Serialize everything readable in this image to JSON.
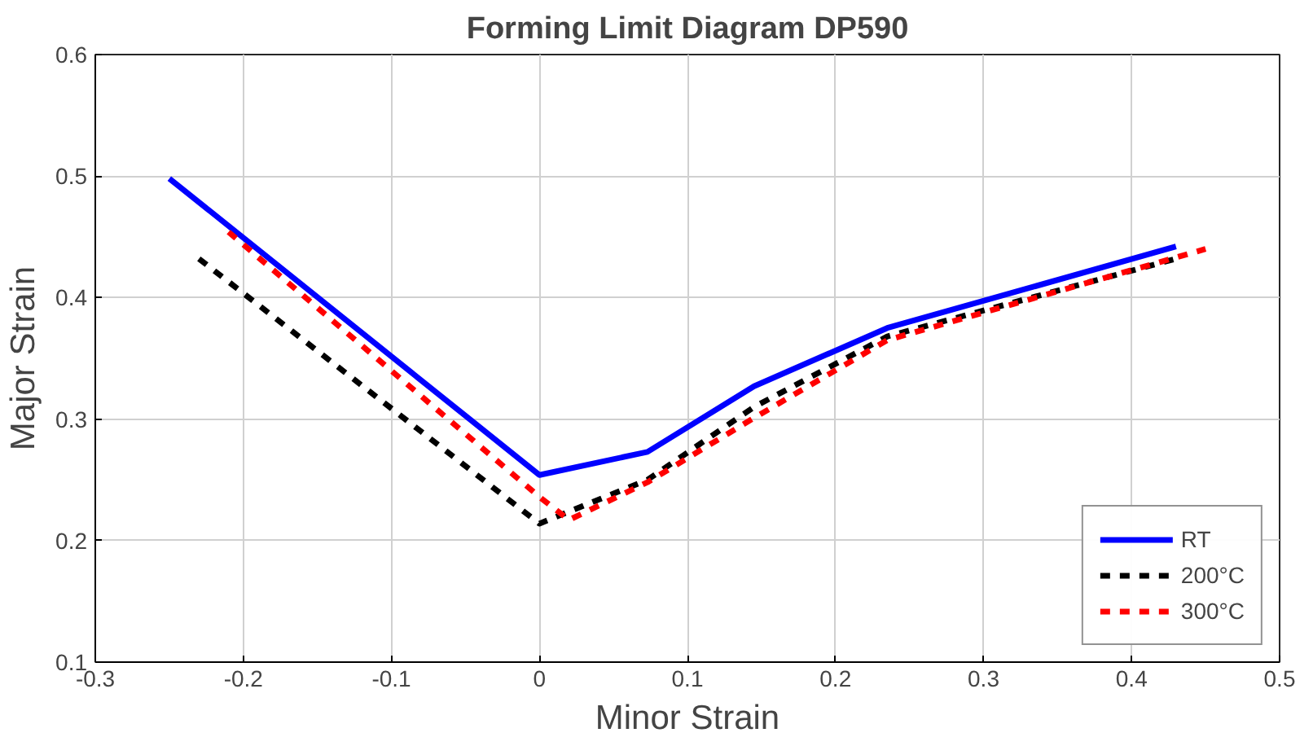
{
  "chart_data": {
    "type": "line",
    "title": "Forming Limit Diagram DP590",
    "xlabel": "Minor Strain",
    "ylabel": "Major Strain",
    "xlim": [
      -0.3,
      0.5
    ],
    "ylim": [
      0.1,
      0.6
    ],
    "xticks": [
      -0.3,
      -0.2,
      -0.1,
      0,
      0.1,
      0.2,
      0.3,
      0.4,
      0.5
    ],
    "yticks": [
      0.1,
      0.2,
      0.3,
      0.4,
      0.5,
      0.6
    ],
    "grid": true,
    "legend": "bottom right",
    "marker": "none",
    "series": [
      {
        "name": "RT",
        "color": "#0000ff",
        "line_style": "solid",
        "x": [
          -0.25,
          0,
          0.073,
          0.145,
          0.235,
          0.43
        ],
        "values": [
          0.498,
          0.254,
          0.273,
          0.327,
          0.375,
          0.442
        ]
      },
      {
        "name": "200°C",
        "color": "#000000",
        "line_style": "dashed",
        "x": [
          -0.23,
          0,
          0.073,
          0.145,
          0.235,
          0.43
        ],
        "values": [
          0.432,
          0.214,
          0.25,
          0.31,
          0.368,
          0.432
        ]
      },
      {
        "name": "300°C",
        "color": "#ff0000",
        "line_style": "dashed",
        "x": [
          -0.21,
          0,
          0.02,
          0.073,
          0.145,
          0.235,
          0.45
        ],
        "values": [
          0.454,
          0.236,
          0.217,
          0.248,
          0.301,
          0.365,
          0.44
        ]
      }
    ]
  }
}
